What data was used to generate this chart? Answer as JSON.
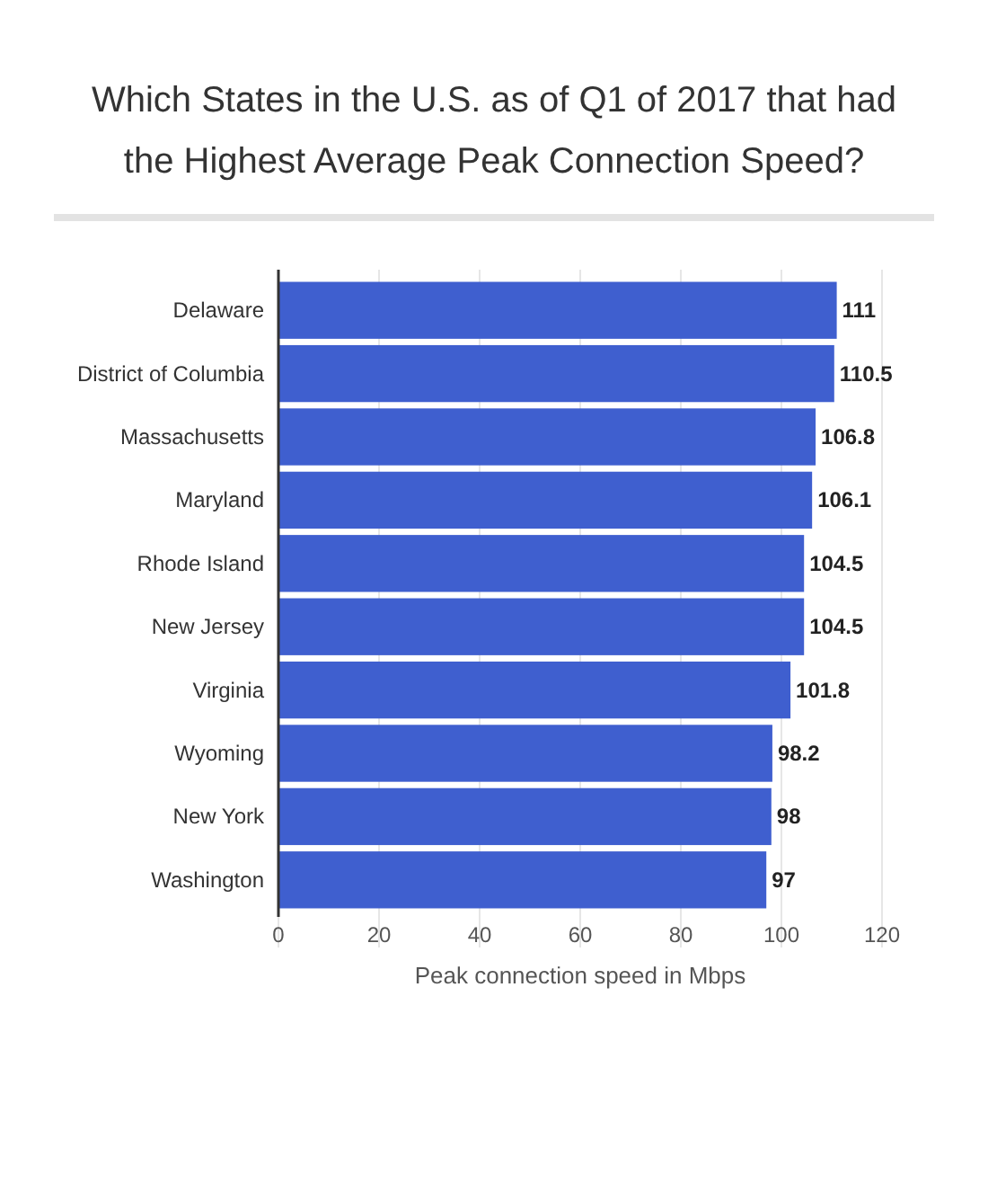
{
  "chart_data": {
    "type": "bar",
    "orientation": "horizontal",
    "title": "Which States in the U.S. as of Q1 of 2017 that had the Highest Average Peak Connection Speed?",
    "xlabel": "Peak connection speed in Mbps",
    "categories": [
      "Delaware",
      "District of Columbia",
      "Massachusetts",
      "Maryland",
      "Rhode Island",
      "New Jersey",
      "Virginia",
      "Wyoming",
      "New York",
      "Washington"
    ],
    "values": [
      111,
      110.5,
      106.8,
      106.1,
      104.5,
      104.5,
      101.8,
      98.2,
      98,
      97
    ],
    "color": "#3f5fcf",
    "xlim": [
      0,
      120
    ],
    "xticks": [
      0,
      20,
      40,
      60,
      80,
      100,
      120
    ],
    "grid": "x",
    "data_labels": true
  }
}
